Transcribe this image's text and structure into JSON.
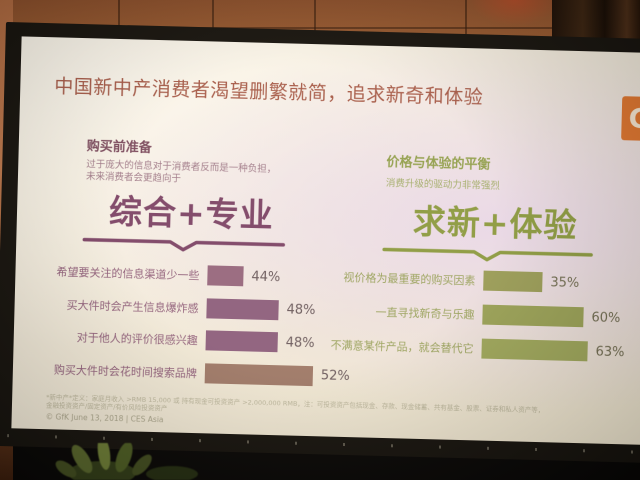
{
  "slide": {
    "title": "中国新中产消费者渴望删繁就简，追求新奇和体验",
    "logo_letter": "G",
    "left": {
      "heading": "购买前准备",
      "sub1": "过于庞大的信息对于消费者反而是一种负担，",
      "sub2": "未来消费者会更趋向于",
      "display": "综合+专业"
    },
    "right": {
      "heading": "价格与体验的平衡",
      "sub": "消费升级的驱动力非常强烈",
      "display": "求新+体验"
    },
    "footnote1": "*新中产*定义：家庭月收入 >RMB 15,000 或 持有现金可投资资产 >2,000,000 RMB，注：可投资资产包括现金、存款、现金储蓄、共有基金、股票、证券和私人资产等，",
    "footnote2": "金融投资资产/固定资产/有价风险投资资产",
    "credit": "© GfK June 13, 2018 | CES Asia"
  },
  "chart_data": [
    {
      "type": "bar",
      "orientation": "horizontal",
      "group": "综合+专业",
      "categories": [
        "希望要关注的信息渠道少一些",
        "买大件时会产生信息爆炸感",
        "对于他人的评价很感兴趣",
        "购买大件时会花时间搜索品牌"
      ],
      "values": [
        44,
        48,
        48,
        52
      ],
      "value_labels": [
        "44%",
        "48%",
        "48%",
        "52%"
      ],
      "unit": "%",
      "bar_colors": [
        "#97687f",
        "#8d5f7e",
        "#8d5f7e",
        "#9f7a69"
      ]
    },
    {
      "type": "bar",
      "orientation": "horizontal",
      "group": "求新+体验",
      "categories": [
        "视价格为最重要的购买因素",
        "一直寻找新奇与乐趣",
        "不满意某件产品，就会替代它"
      ],
      "values": [
        35,
        60,
        63
      ],
      "value_labels": [
        "35%",
        "60%",
        "63%"
      ],
      "unit": "%",
      "bar_colors": [
        "#9a9d58",
        "#9aa257",
        "#9ea75b"
      ]
    }
  ],
  "colors": {
    "title_red": "#a65a48",
    "plum": "#7d4568",
    "olive": "#8c9b41",
    "logo_orange": "#e0762f"
  }
}
